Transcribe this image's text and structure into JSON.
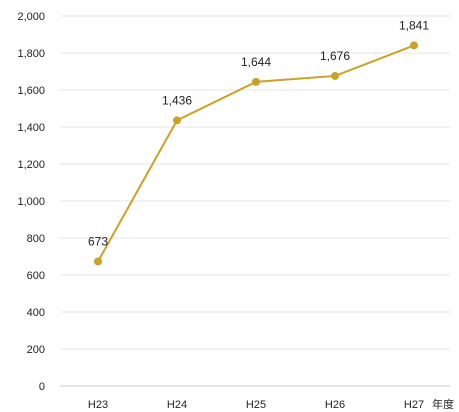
{
  "chart_data": {
    "type": "line",
    "categories": [
      "H23",
      "H24",
      "H25",
      "H26",
      "H27"
    ],
    "series": [
      {
        "values": [
          673,
          1436,
          1644,
          1676,
          1841
        ]
      }
    ],
    "data_labels": [
      "673",
      "1,436",
      "1,644",
      "1,676",
      "1,841"
    ],
    "y_ticks": [
      0,
      200,
      400,
      600,
      800,
      1000,
      1200,
      1400,
      1600,
      1800,
      2000
    ],
    "y_tick_labels": [
      "0",
      "200",
      "400",
      "600",
      "800",
      "1,000",
      "1,200",
      "1,400",
      "1,600",
      "1,800",
      "2,000"
    ],
    "ylim": [
      0,
      2000
    ],
    "x_unit_label": "年度",
    "grid": true,
    "colors": {
      "series": "#c9a227",
      "grid": "#e6e6e6",
      "text": "#222222"
    }
  }
}
